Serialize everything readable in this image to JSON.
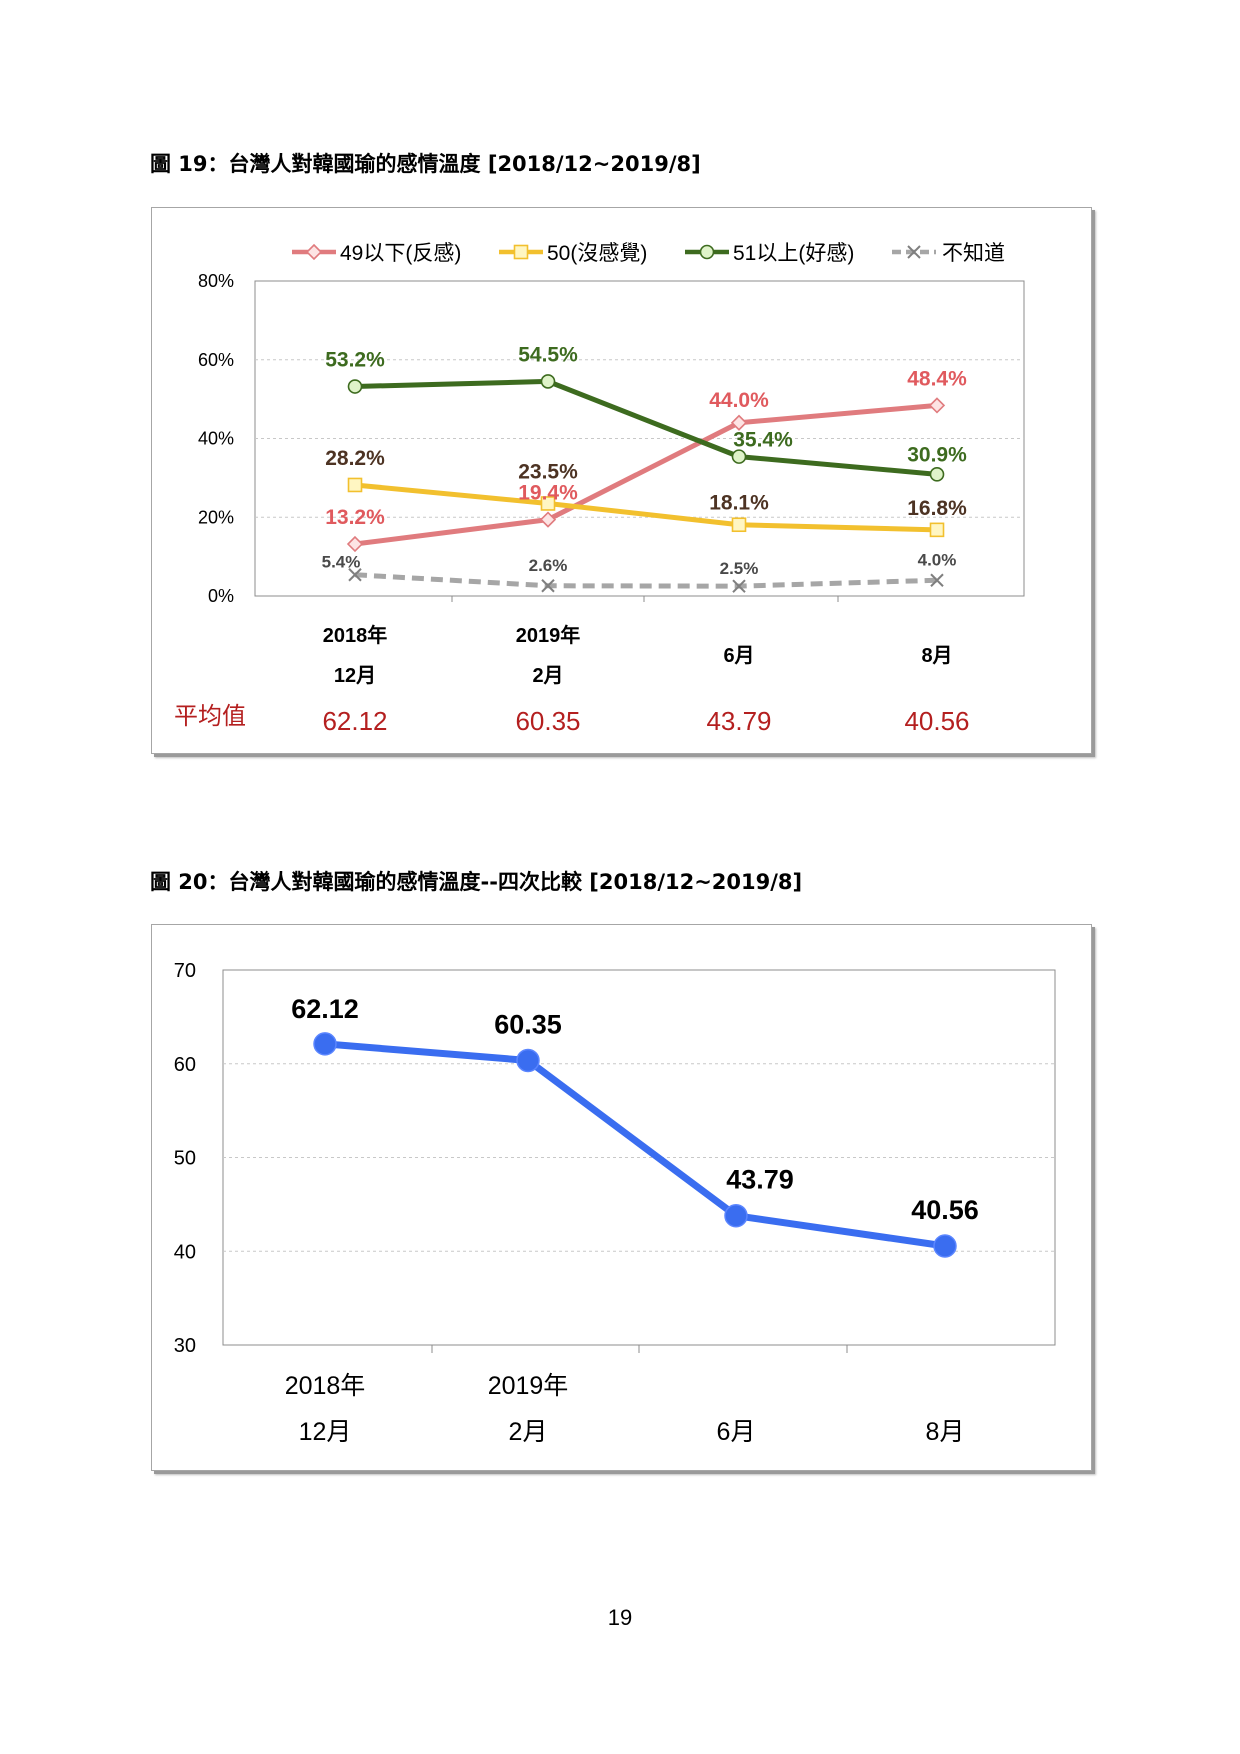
{
  "figures": [
    {
      "caption": "圖 19：台灣人對韓國瑜的感情溫度  [2018/12~2019/8]"
    },
    {
      "caption": "圖 20：台灣人對韓國瑜的感情溫度--四次比較  [2018/12~2019/8]"
    }
  ],
  "chart_data": [
    {
      "type": "line",
      "categories": [
        [
          "2018年",
          "12月"
        ],
        [
          "2019年",
          "2月"
        ],
        [
          "6月"
        ],
        [
          "8月"
        ]
      ],
      "ylim": [
        0,
        80
      ],
      "yticks": [
        "0%",
        "20%",
        "40%",
        "60%",
        "80%"
      ],
      "grid": true,
      "legend_position": "top",
      "series": [
        {
          "name": "49以下(反感)",
          "values": [
            13.2,
            19.4,
            44.0,
            48.4
          ],
          "labels": [
            "13.2%",
            "19.4%",
            "44.0%",
            "48.4%"
          ],
          "color": "#e07b7e",
          "marker": "diamond",
          "label_color": "#e05a5e"
        },
        {
          "name": "50(沒感覺)",
          "values": [
            28.2,
            23.5,
            18.1,
            16.8
          ],
          "labels": [
            "28.2%",
            "23.5%",
            "18.1%",
            "16.8%"
          ],
          "color": "#f2c02e",
          "marker": "square",
          "label_color": "#4d3323"
        },
        {
          "name": "51以上(好感)",
          "values": [
            53.2,
            54.5,
            35.4,
            30.9
          ],
          "labels": [
            "53.2%",
            "54.5%",
            "35.4%",
            "30.9%"
          ],
          "color": "#3d6b1f",
          "marker": "circle",
          "label_color": "#3d6b1f"
        },
        {
          "name": "不知道",
          "values": [
            5.4,
            2.6,
            2.5,
            4.0
          ],
          "labels": [
            "5.4%",
            "2.6%",
            "2.5%",
            "4.0%"
          ],
          "color": "#a6a6a6",
          "marker": "x",
          "dashed": true,
          "label_color": "#4a4a4a"
        }
      ],
      "average": {
        "label": "平均值",
        "values": [
          "62.12",
          "60.35",
          "43.79",
          "40.56"
        ],
        "color": "#b41f1f"
      }
    },
    {
      "type": "line",
      "categories": [
        [
          "2018年",
          "12月"
        ],
        [
          "2019年",
          "2月"
        ],
        [
          "6月"
        ],
        [
          "8月"
        ]
      ],
      "ylim": [
        30,
        70
      ],
      "yticks": [
        "30",
        "40",
        "50",
        "60",
        "70"
      ],
      "grid": true,
      "series": [
        {
          "values": [
            62.12,
            60.35,
            43.79,
            40.56
          ],
          "labels": [
            "62.12",
            "60.35",
            "43.79",
            "40.56"
          ],
          "color": "#3a6df0",
          "marker": "circle"
        }
      ]
    }
  ],
  "page_number": "19"
}
